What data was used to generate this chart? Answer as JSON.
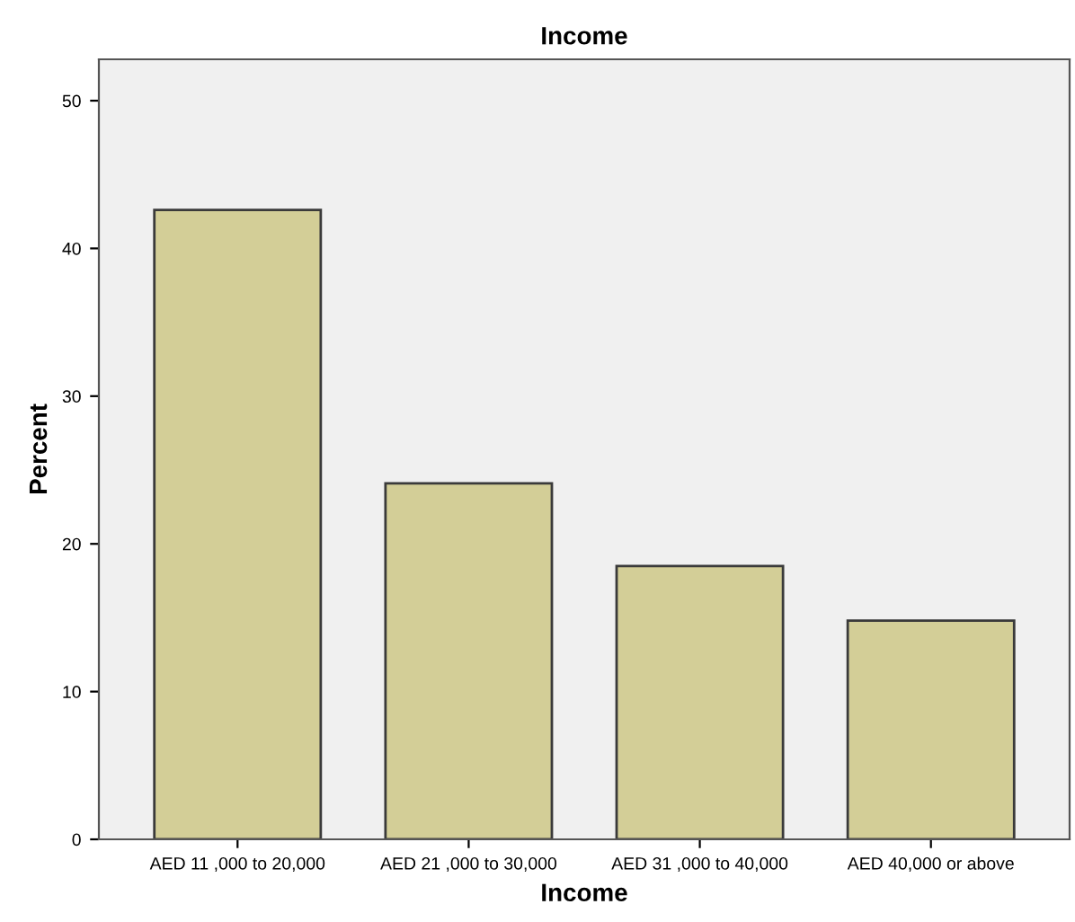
{
  "chart_data": {
    "type": "bar",
    "title": "Income",
    "xlabel": "Income",
    "ylabel": "Percent",
    "categories": [
      "AED 11 ,000 to 20,000",
      "AED 21 ,000 to 30,000",
      "AED 31 ,000 to 40,000",
      "AED 40,000 or above"
    ],
    "values": [
      42.6,
      24.1,
      18.5,
      14.8
    ],
    "color": "#d3ce97",
    "ylim": [
      0,
      52.8
    ],
    "yticks": [
      0,
      10,
      20,
      30,
      40,
      50
    ],
    "grid": false,
    "legend": false
  }
}
